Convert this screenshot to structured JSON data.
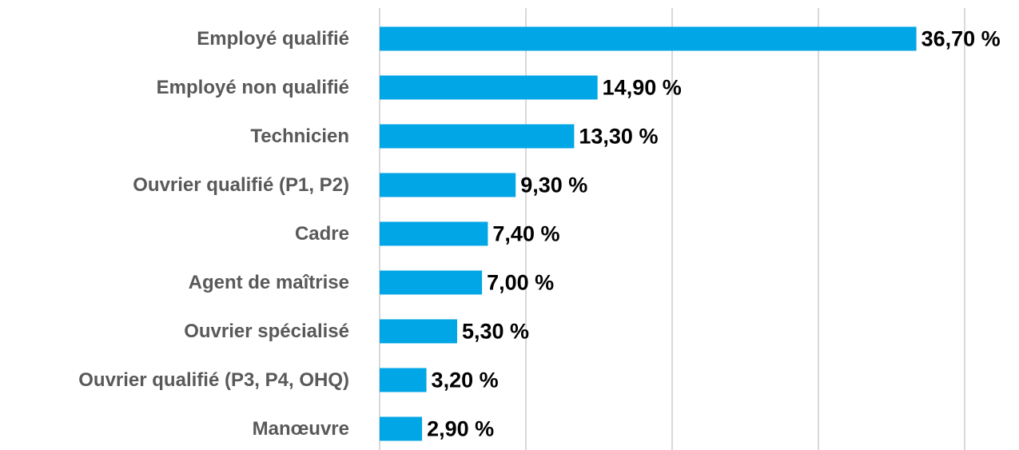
{
  "chart_data": {
    "type": "bar",
    "orientation": "horizontal",
    "categories": [
      "Employé qualifié",
      "Employé non qualifié",
      "Technicien",
      "Ouvrier qualifié (P1, P2)",
      "Cadre",
      "Agent de maîtrise",
      "Ouvrier spécialisé",
      "Ouvrier qualifié (P3, P4, OHQ)",
      "Manœuvre"
    ],
    "values": [
      36.7,
      14.9,
      13.3,
      9.3,
      7.4,
      7.0,
      5.3,
      3.2,
      2.9
    ],
    "value_labels": [
      "36,70 %",
      "14,90 %",
      "13,30 %",
      "9,30 %",
      "7,40 %",
      "7,00 %",
      "5,30 %",
      "3,20 %",
      "2,90 %"
    ],
    "color": "#00a6e6",
    "xlim": [
      0,
      40
    ],
    "xticks": [
      0,
      10,
      20,
      30,
      40
    ],
    "grid": true
  }
}
